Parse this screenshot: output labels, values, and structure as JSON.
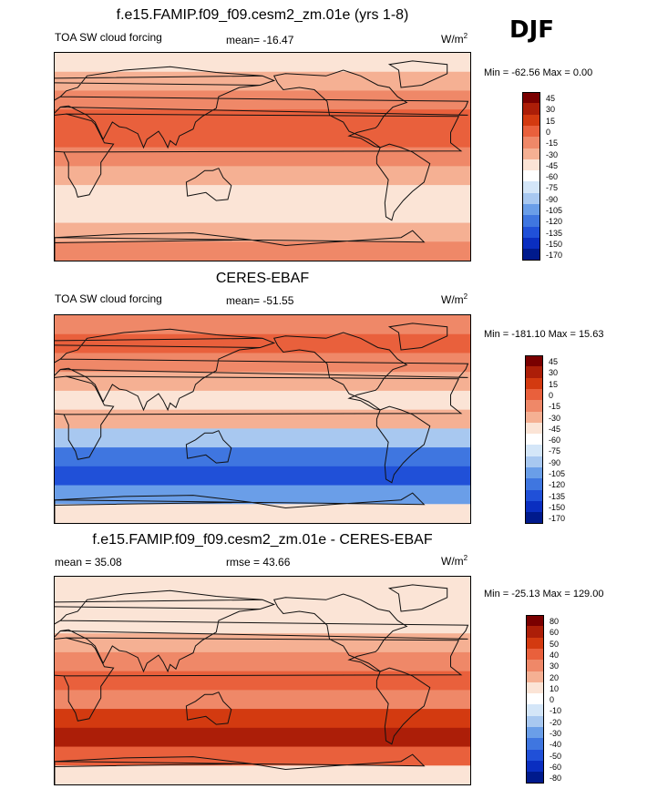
{
  "season": "DJF",
  "panels": [
    {
      "id": "model",
      "title": "f.e15.FAMIP.f09_f09.cesm2_zm.01e (yrs 1-8)",
      "left_label": "TOA SW cloud forcing",
      "center_label": "mean= -16.47",
      "units": "W/m",
      "units_sup": "2",
      "minmax": "Min = -62.56 Max =   0.00",
      "bands": [
        "#fbe4d6",
        "#f5b093",
        "#ef8868",
        "#e9603c",
        "#e9603c",
        "#ef8868",
        "#f5b093",
        "#fbe4d6",
        "#fbe4d6",
        "#f5b093",
        "#ef8868"
      ],
      "colorbar": {
        "colors": [
          "#7a0000",
          "#ac1e08",
          "#d33a10",
          "#e9603c",
          "#ef8868",
          "#f5b093",
          "#fbe4d6",
          "#ffffff",
          "#d4e6f8",
          "#a8c8f0",
          "#6a9ee8",
          "#3f76e0",
          "#2050d8",
          "#0a2ec0",
          "#001a8c"
        ],
        "ticks": [
          "45",
          "30",
          "15",
          "0",
          "-15",
          "-30",
          "-45",
          "-60",
          "-75",
          "-90",
          "-105",
          "-120",
          "-135",
          "-150",
          "-170"
        ]
      }
    },
    {
      "id": "obs",
      "title": "CERES-EBAF",
      "left_label": "TOA SW cloud forcing",
      "center_label": "mean= -51.55",
      "units": "W/m",
      "units_sup": "2",
      "minmax": "Min = -181.10 Max =  15.63",
      "bands": [
        "#ef8868",
        "#e9603c",
        "#ef8868",
        "#f5b093",
        "#fbe4d6",
        "#f5b093",
        "#a8c8f0",
        "#3f76e0",
        "#2050d8",
        "#6a9ee8",
        "#fbe4d6"
      ],
      "colorbar": {
        "colors": [
          "#7a0000",
          "#ac1e08",
          "#d33a10",
          "#e9603c",
          "#ef8868",
          "#f5b093",
          "#fbe4d6",
          "#ffffff",
          "#d4e6f8",
          "#a8c8f0",
          "#6a9ee8",
          "#3f76e0",
          "#2050d8",
          "#0a2ec0",
          "#001a8c"
        ],
        "ticks": [
          "45",
          "30",
          "15",
          "0",
          "-15",
          "-30",
          "-45",
          "-60",
          "-75",
          "-90",
          "-105",
          "-120",
          "-135",
          "-150",
          "-170"
        ]
      }
    },
    {
      "id": "diff",
      "title": "f.e15.FAMIP.f09_f09.cesm2_zm.01e - CERES-EBAF",
      "left_label": "mean =  35.08",
      "center_label": "rmse =  43.66",
      "units": "W/m",
      "units_sup": "2",
      "minmax": "Min = -25.13 Max = 129.00",
      "bands": [
        "#fbe4d6",
        "#fbe4d6",
        "#fbe4d6",
        "#f5b093",
        "#ef8868",
        "#e9603c",
        "#ef8868",
        "#d33a10",
        "#ac1e08",
        "#e9603c",
        "#fbe4d6"
      ],
      "colorbar": {
        "colors": [
          "#7a0000",
          "#ac1e08",
          "#d33a10",
          "#e9603c",
          "#ef8868",
          "#f5b093",
          "#fbe4d6",
          "#ffffff",
          "#d4e6f8",
          "#a8c8f0",
          "#6a9ee8",
          "#3f76e0",
          "#2050d8",
          "#0a2ec0",
          "#001a8c"
        ],
        "ticks": [
          "80",
          "60",
          "50",
          "40",
          "30",
          "20",
          "10",
          "0",
          "-10",
          "-20",
          "-30",
          "-40",
          "-50",
          "-60",
          "-80"
        ]
      }
    }
  ]
}
